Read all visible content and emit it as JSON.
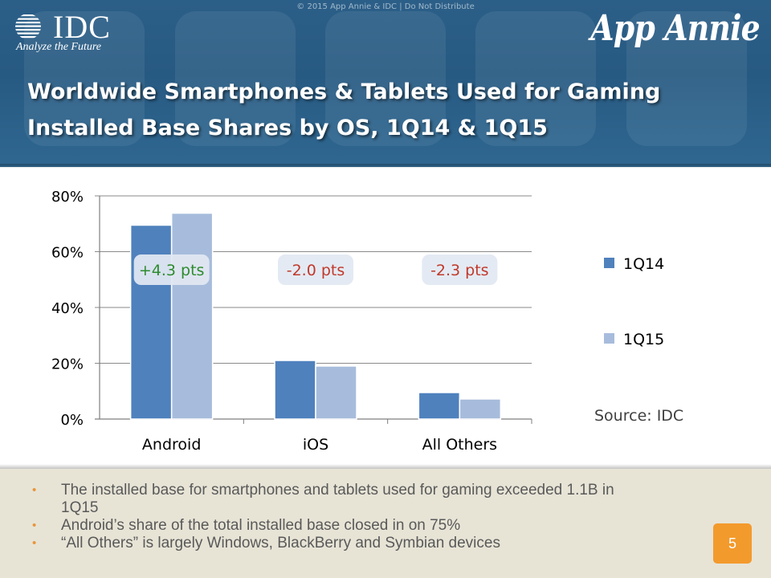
{
  "header": {
    "copyright": "© 2015 App Annie & IDC | Do Not Distribute",
    "idc_logo_text": "IDC",
    "idc_tagline": "Analyze the Future",
    "app_annie_logo_text": "App Annie",
    "title_line1": "Worldwide Smartphones & Tablets Used for Gaming",
    "title_line2": "Installed Base Shares by OS, 1Q14 & 1Q15",
    "background_color": "#2b5e87"
  },
  "chart_data": {
    "type": "bar",
    "categories": [
      "Android",
      "iOS",
      "All Others"
    ],
    "series": [
      {
        "name": "1Q14",
        "values": [
          69.5,
          21,
          9.5
        ],
        "color": "#4f81bd"
      },
      {
        "name": "1Q15",
        "values": [
          73.8,
          19,
          7.2
        ],
        "color": "#a7bcdc"
      }
    ],
    "ylim": [
      0,
      80
    ],
    "yticks": [
      0,
      20,
      40,
      60,
      80
    ],
    "ytick_labels": [
      "0%",
      "20%",
      "40%",
      "60%",
      "80%"
    ],
    "grid": true,
    "legend_position": "right",
    "annotations": [
      {
        "category": "Android",
        "text": "+4.3 pts",
        "color": "#2e8b2e"
      },
      {
        "category": "iOS",
        "text": "-2.0 pts",
        "color": "#c0392b"
      },
      {
        "category": "All Others",
        "text": "-2.3 pts",
        "color": "#c0392b"
      }
    ],
    "source": "Source: IDC"
  },
  "bullets": [
    "The installed base for smartphones and tablets used for gaming exceeded 1.1B in 1Q15",
    "Android’s share of the total installed base closed in on 75%",
    "“All Others” is largely Windows, BlackBerry and Symbian devices"
  ],
  "page_number": "5",
  "colors": {
    "accent_orange": "#f39a2c",
    "footer_background": "#e7e4d6"
  }
}
